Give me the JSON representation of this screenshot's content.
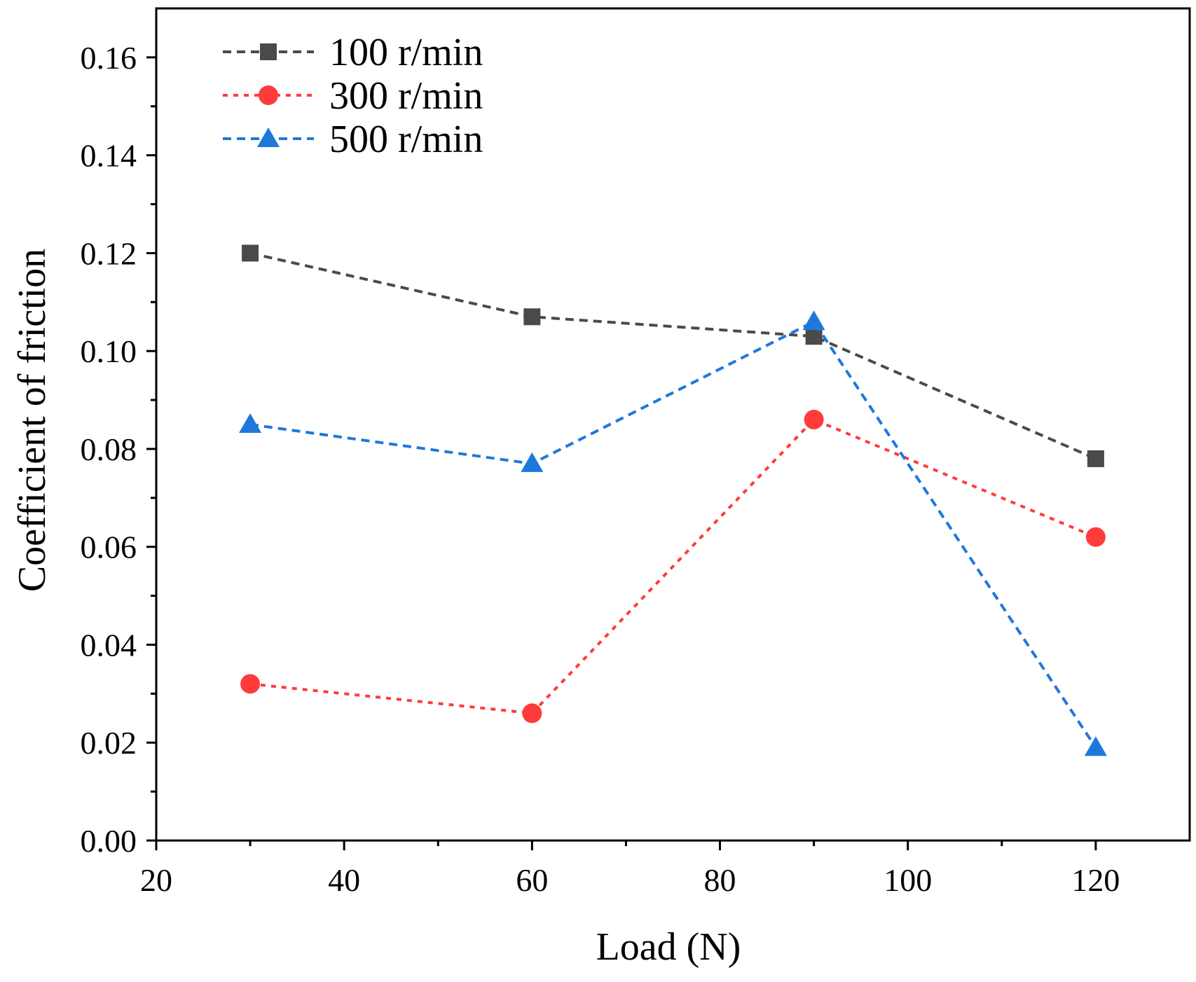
{
  "chart_data": {
    "type": "line",
    "xlabel": "Load (N)",
    "ylabel": "Coefficient of friction",
    "xlim": [
      20,
      130
    ],
    "ylim": [
      0,
      0.17
    ],
    "x_ticks": [
      "20",
      "40",
      "60",
      "80",
      "100",
      "120"
    ],
    "y_ticks": [
      "0.00",
      "0.02",
      "0.04",
      "0.06",
      "0.08",
      "0.10",
      "0.12",
      "0.14",
      "0.16"
    ],
    "legend_position": "top-left",
    "x": [
      30,
      60,
      90,
      120
    ],
    "series": [
      {
        "name": "100 r/min",
        "marker": "square",
        "color": "#4a4a4a",
        "values": [
          0.12,
          0.107,
          0.103,
          0.078
        ]
      },
      {
        "name": "300 r/min",
        "marker": "circle",
        "color": "#ff3b3b",
        "values": [
          0.032,
          0.026,
          0.086,
          0.062
        ]
      },
      {
        "name": "500 r/min",
        "marker": "triangle",
        "color": "#1e78dc",
        "values": [
          0.085,
          0.077,
          0.106,
          0.019
        ]
      }
    ]
  }
}
